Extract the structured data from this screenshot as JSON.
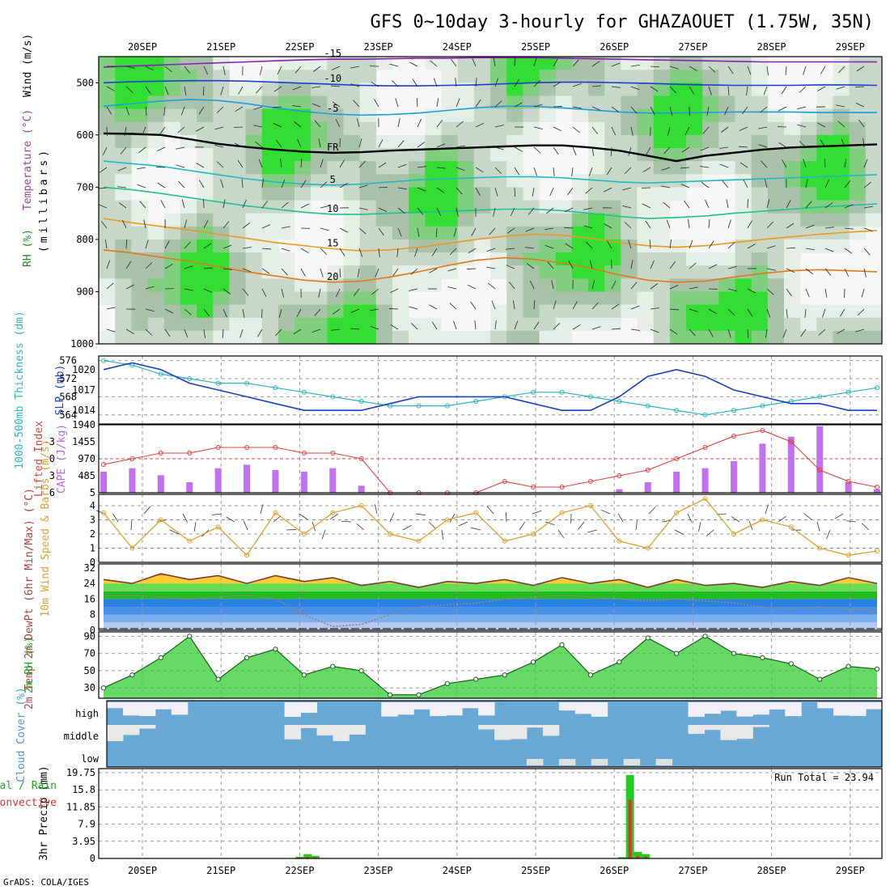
{
  "title": "GFS 0~10day 3-hourly for GHAZAOUET (1.75W, 35N)",
  "footer": "GrADS: COLA/IGES",
  "chart_data": {
    "type": "meteogram",
    "dates": [
      "20SEP",
      "21SEP",
      "22SEP",
      "23SEP",
      "24SEP",
      "25SEP",
      "26SEP",
      "27SEP",
      "28SEP",
      "29SEP"
    ],
    "panels": {
      "upper_air": {
        "ylabel": "(millibars)",
        "legend": [
          "RH (%)",
          "Temperature (°C)",
          "Wind (m/s)"
        ],
        "yticks": [
          "500",
          "600",
          "700",
          "800",
          "900",
          "1000"
        ],
        "ylim": [
          1000,
          450
        ],
        "freezing_label": "FR",
        "isotherms": [
          {
            "label": "-15",
            "values": [
              470,
              468,
              466,
              464,
              462,
              460,
              458,
              456,
              455,
              455,
              454,
              453,
              453,
              452,
              452,
              452,
              453,
              454,
              455,
              456,
              457,
              458,
              459,
              460,
              460,
              460,
              460,
              460
            ]
          },
          {
            "label": "-10",
            "values": [
              500,
              498,
              497,
              496,
              496,
              497,
              499,
              501,
              503,
              505,
              506,
              506,
              505,
              504,
              502,
              500,
              499,
              499,
              500,
              501,
              503,
              504,
              505,
              505,
              505,
              504,
              504,
              505
            ]
          },
          {
            "label": "-5",
            "values": [
              545,
              540,
              535,
              532,
              534,
              540,
              548,
              555,
              560,
              562,
              561,
              558,
              553,
              548,
              545,
              545,
              548,
              552,
              556,
              558,
              558,
              557,
              556,
              556,
              556,
              557,
              557,
              557
            ]
          },
          {
            "label": "FR",
            "values": [
              597,
              598,
              600,
              608,
              617,
              623,
              628,
              632,
              634,
              633,
              630,
              628,
              626,
              624,
              622,
              620,
              620,
              624,
              630,
              640,
              650,
              640,
              634,
              628,
              624,
              622,
              620,
              618
            ]
          },
          {
            "label": "5",
            "values": [
              650,
              655,
              660,
              668,
              676,
              684,
              690,
              694,
              696,
              694,
              690,
              686,
              684,
              682,
              680,
              680,
              682,
              686,
              690,
              692,
              690,
              688,
              686,
              684,
              682,
              680,
              678,
              676
            ]
          },
          {
            "label": "10",
            "values": [
              700,
              705,
              712,
              720,
              728,
              736,
              742,
              748,
              752,
              752,
              750,
              748,
              746,
              744,
              742,
              742,
              745,
              750,
              756,
              760,
              758,
              755,
              750,
              746,
              742,
              738,
              735,
              732
            ]
          },
          {
            "label": "15",
            "values": [
              760,
              768,
              775,
              782,
              790,
              798,
              806,
              812,
              818,
              822,
              820,
              815,
              808,
              800,
              794,
              790,
              792,
              798,
              806,
              812,
              815,
              812,
              806,
              800,
              795,
              790,
              786,
              783
            ]
          },
          {
            "label": "20",
            "values": [
              820,
              826,
              834,
              842,
              852,
              862,
              870,
              878,
              882,
              880,
              872,
              862,
              850,
              840,
              835,
              838,
              845,
              855,
              868,
              878,
              882,
              880,
              872,
              865,
              860,
              858,
              860,
              862
            ]
          }
        ]
      },
      "thickness_slp": {
        "ylabel_left": "1000-500mb Thickness (dm)",
        "ylabel_right": "SLP (mb)",
        "thickness_ticks": [
          "576",
          "572",
          "568",
          "564"
        ],
        "slp_ticks": [
          "1020",
          "1017",
          "1014"
        ],
        "thickness_dm": [
          576,
          575,
          573,
          572,
          571,
          571,
          570,
          569,
          568,
          567,
          566,
          566,
          566,
          567,
          568,
          569,
          569,
          568,
          567,
          566,
          565,
          564,
          565,
          566,
          567,
          568,
          569,
          570
        ],
        "slp_mb": [
          1020,
          1021,
          1020,
          1018,
          1017,
          1016,
          1015,
          1014,
          1014,
          1014,
          1015,
          1016,
          1016,
          1016,
          1016,
          1015,
          1014,
          1014,
          1016,
          1019,
          1020,
          1019,
          1017,
          1016,
          1015,
          1015,
          1014,
          1014
        ]
      },
      "cape_li": {
        "ylabel_left": "Lifted Index",
        "ylabel_right": "CAPE (J/kg)",
        "li_ticks": [
          "-3",
          "0",
          "3",
          "6"
        ],
        "cape_ticks": [
          "1940",
          "1455",
          "970",
          "485",
          "5"
        ],
        "lifted_index": [
          1,
          0,
          -1,
          -1,
          -2,
          -2,
          -2,
          -1,
          -1,
          0,
          6,
          6,
          6,
          6,
          4,
          5,
          5,
          4,
          3,
          2,
          0,
          -2,
          -4,
          -5,
          -3,
          2,
          4,
          5
        ],
        "cape": [
          600,
          700,
          500,
          300,
          700,
          800,
          650,
          600,
          700,
          200,
          0,
          0,
          0,
          0,
          0,
          0,
          0,
          0,
          100,
          300,
          600,
          700,
          900,
          1400,
          1600,
          1900,
          300,
          100
        ]
      },
      "wind10m": {
        "ylabel": "10m Wind Speed & Barbs (m/s)",
        "yticks": [
          "4",
          "3",
          "2",
          "1",
          "0"
        ],
        "speed": [
          3.5,
          1.0,
          3.0,
          1.5,
          2.5,
          0.5,
          3.5,
          2.0,
          3.5,
          4.0,
          2.0,
          1.5,
          3.0,
          3.5,
          1.5,
          2.0,
          3.5,
          4.0,
          1.5,
          1.0,
          3.5,
          4.5,
          2.0,
          3.0,
          2.5,
          1.0,
          0.5,
          0.8
        ]
      },
      "temperature": {
        "ylabel": "2m Temp 2m DewPt (6hr Min/Max) (°C)",
        "yticks": [
          "32",
          "24",
          "16",
          "8",
          "0"
        ],
        "temp_c": [
          26,
          24,
          29,
          26,
          28,
          24,
          28,
          25,
          27,
          23,
          25,
          22,
          25,
          24,
          26,
          23,
          27,
          24,
          26,
          22,
          26,
          23,
          24,
          22,
          25,
          23,
          27,
          24
        ],
        "dewpt_c": [
          18,
          18,
          17,
          16,
          17,
          18,
          16,
          8,
          2,
          3,
          8,
          12,
          13,
          14,
          16,
          17,
          18,
          17,
          16,
          15,
          16,
          15,
          14,
          12,
          11,
          12,
          11,
          10
        ]
      },
      "rh2m": {
        "ylabel": "2m RH (%)",
        "yticks": [
          "90",
          "70",
          "50",
          "30"
        ],
        "rh_pct": [
          30,
          45,
          65,
          90,
          40,
          65,
          75,
          45,
          55,
          50,
          22,
          22,
          35,
          40,
          45,
          60,
          80,
          45,
          60,
          88,
          70,
          90,
          70,
          65,
          58,
          40,
          55,
          52
        ]
      },
      "cloud_cover": {
        "ylabel": "Cloud Cover (%)",
        "levels": [
          "high",
          "middle",
          "low"
        ]
      },
      "precip": {
        "ylabel": "3hr Precip (mm)",
        "legend": [
          "Total / Rain",
          "Convective"
        ],
        "yticks": [
          "19.75",
          "15.8",
          "11.85",
          "7.9",
          "3.95",
          "0"
        ],
        "run_total": "Run Total = 23.94",
        "events": [
          {
            "day": 2.0,
            "total": 0.4,
            "convective": 0.2
          },
          {
            "day": 2.1,
            "total": 1.0,
            "convective": 0.4
          },
          {
            "day": 2.2,
            "total": 0.6,
            "convective": 0.3
          },
          {
            "day": 6.1,
            "total": 0.3,
            "convective": 0.1
          },
          {
            "day": 6.2,
            "total": 19.2,
            "convective": 13.5
          },
          {
            "day": 6.3,
            "total": 1.5,
            "convective": 0.6
          },
          {
            "day": 6.4,
            "total": 1.0,
            "convective": 0.4
          }
        ]
      }
    }
  }
}
